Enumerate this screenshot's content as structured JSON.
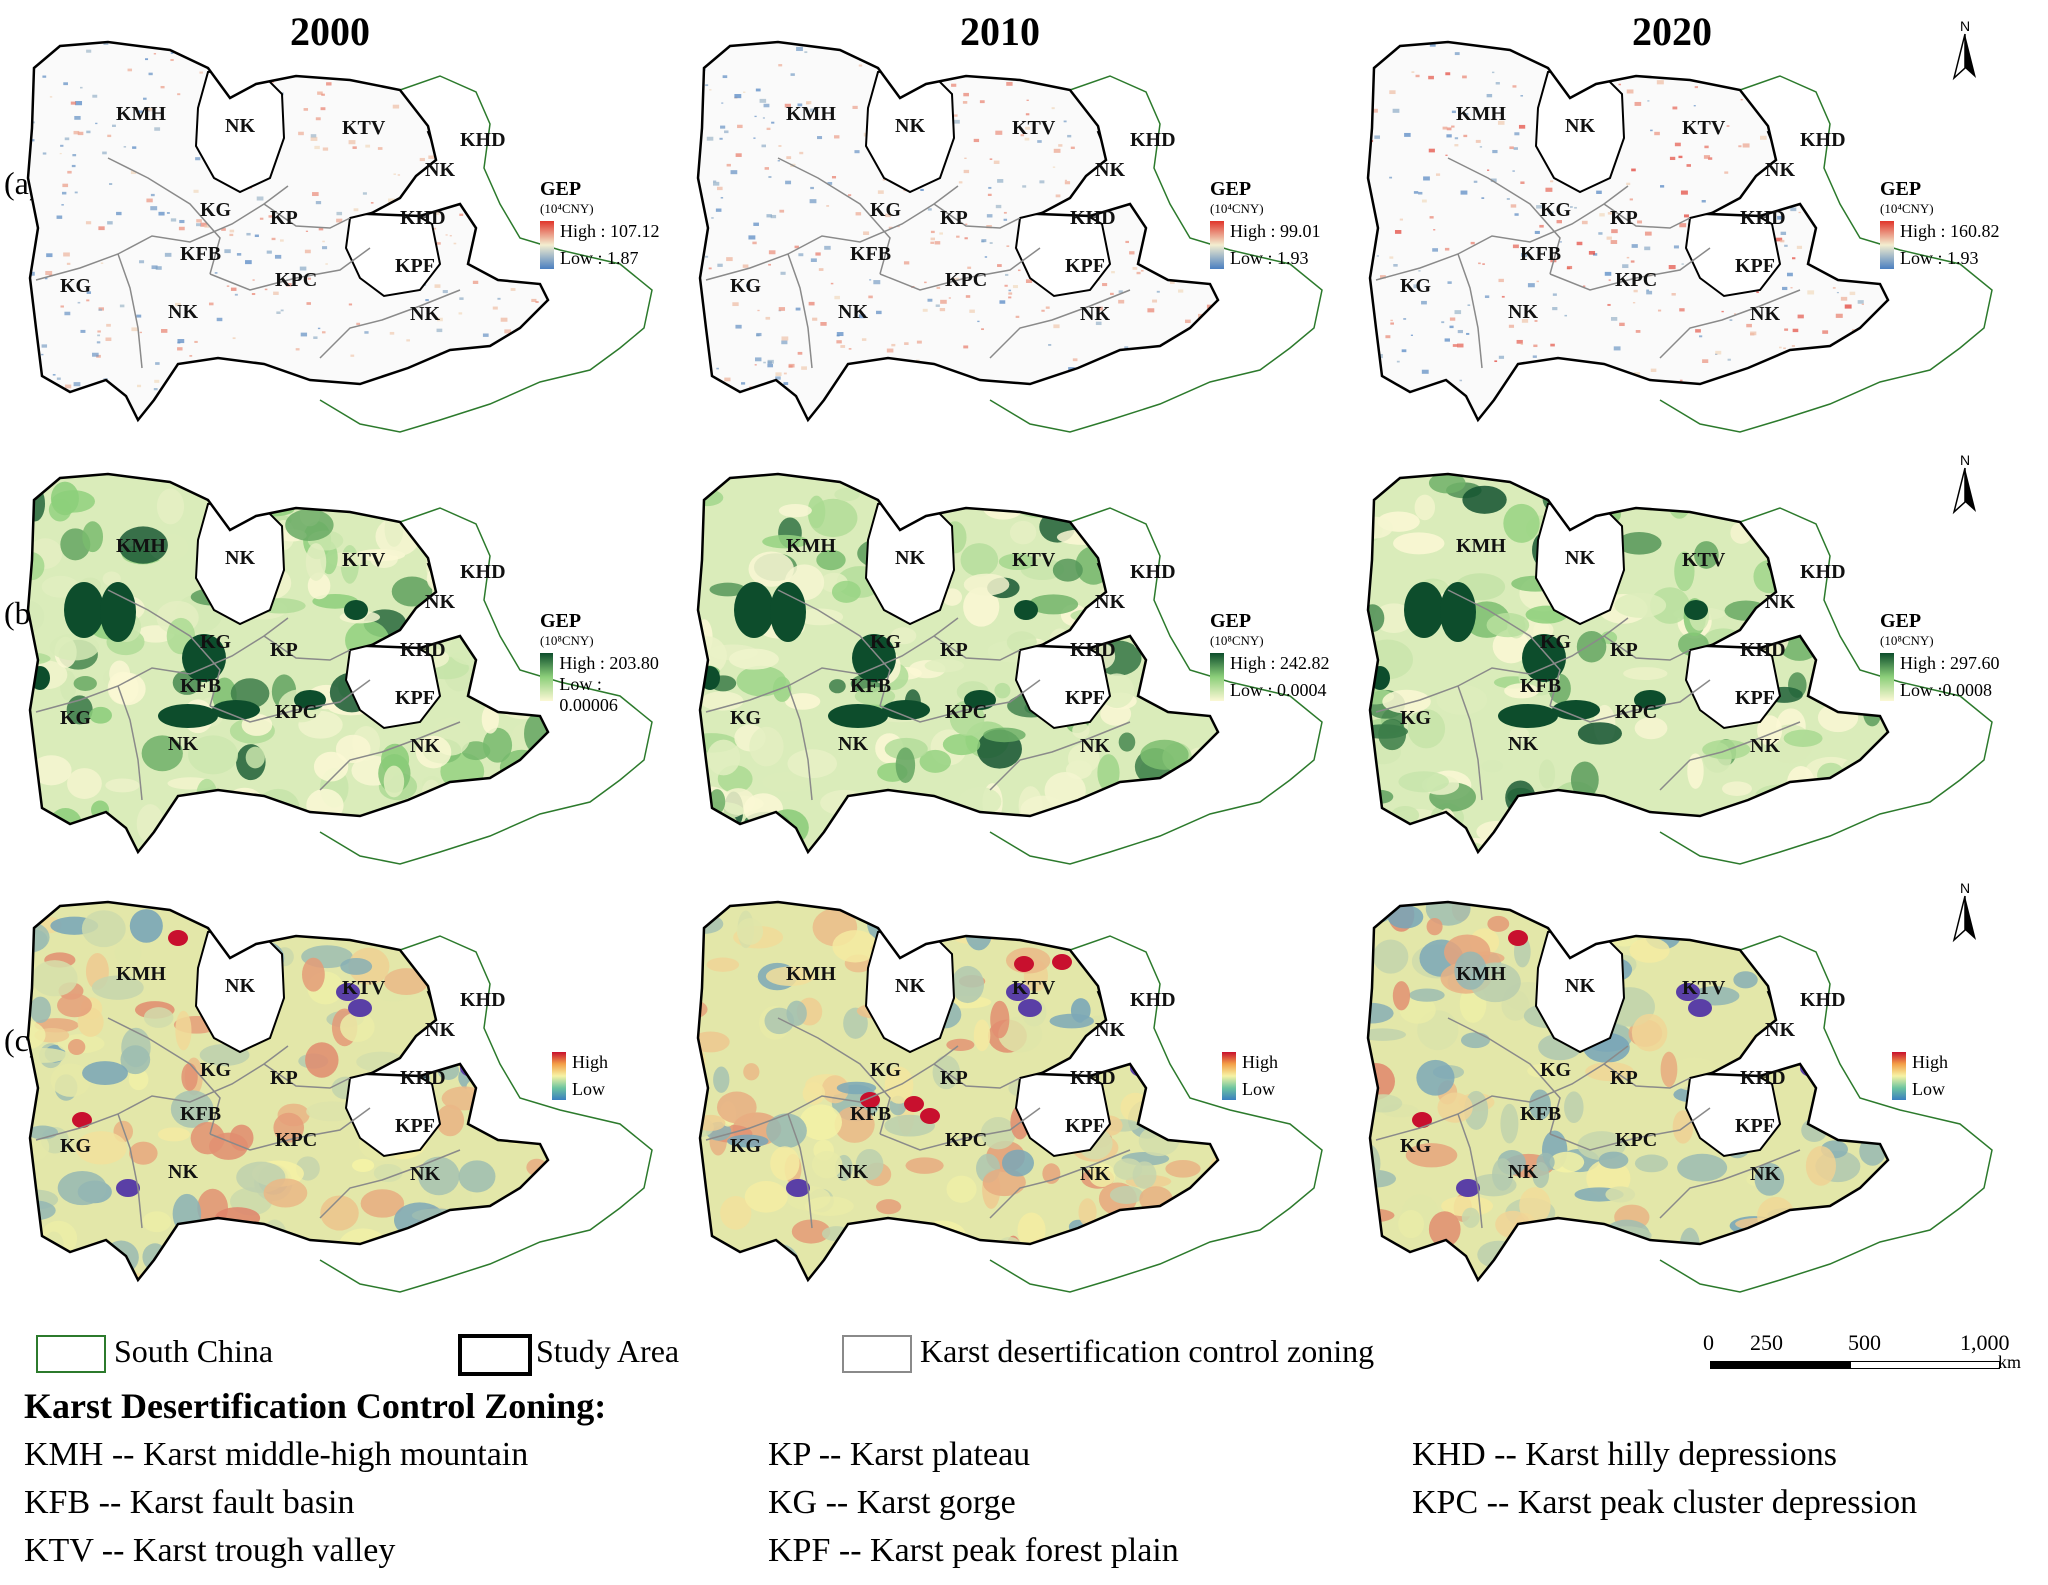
{
  "years": [
    "2000",
    "2010",
    "2020"
  ],
  "row_labels": [
    "(a)",
    "(b)",
    "(c)"
  ],
  "zone_labels": [
    "KMH",
    "NK",
    "KTV",
    "KHD",
    "NK",
    "KG",
    "KP",
    "KHD",
    "KFB",
    "KPF",
    "KG",
    "KPC",
    "NK",
    "NK"
  ],
  "gep_legends": {
    "a": [
      {
        "title": "GEP",
        "unit": "(10⁴CNY)",
        "high": "High : 107.12",
        "low": "Low : 1.87"
      },
      {
        "title": "GEP",
        "unit": "(10⁴CNY)",
        "high": "High : 99.01",
        "low": "Low : 1.93"
      },
      {
        "title": "GEP",
        "unit": "(10⁴CNY)",
        "high": "High : 160.82",
        "low": "Low : 1.93"
      }
    ],
    "b": [
      {
        "title": "GEP",
        "unit": "(10⁸CNY)",
        "high": "High : 203.80",
        "low": "Low : 0.00006"
      },
      {
        "title": "GEP",
        "unit": "(10⁸CNY)",
        "high": "High : 242.82",
        "low": "Low : 0.0004"
      },
      {
        "title": "GEP",
        "unit": "(10⁸CNY)",
        "high": "High : 297.60",
        "low": "Low :0.0008"
      }
    ],
    "c": [
      {
        "high": "High",
        "low": "Low"
      },
      {
        "high": "High",
        "low": "Low"
      },
      {
        "high": "High",
        "low": "Low"
      }
    ]
  },
  "north_label": "N",
  "boundary_legend": {
    "south_china": "South China",
    "study_area": "Study Area",
    "zoning": "Karst desertification control zoning"
  },
  "scale_bar": {
    "ticks": [
      "0",
      "250",
      "500",
      "1,000"
    ],
    "unit": "km"
  },
  "zoning_legend": {
    "title": "Karst Desertification Control Zoning:",
    "items": [
      "KMH -- Karst middle-high mountain",
      "KP -- Karst plateau",
      "KHD -- Karst hilly depressions",
      "KFB -- Karst fault basin",
      "KG -- Karst gorge",
      "KPC -- Karst peak cluster depression",
      "KTV -- Karst trough valley",
      "KPF -- Karst peak forest plain"
    ]
  },
  "colors": {
    "row_a_low": "#4a7fc0",
    "row_a_mid": "#f3eed0",
    "row_a_high": "#e0352b",
    "row_b_low": "#fbf8d5",
    "row_b_mid": "#8ccf7a",
    "row_b_high": "#0d4d2c",
    "row_c_low": "#3a7fc0",
    "row_c_mid": "#f6f3a6",
    "row_c_high": "#c8102e",
    "south_china": "#2c7a2c",
    "study_area": "#000000",
    "zoning": "#8a8a8a"
  }
}
